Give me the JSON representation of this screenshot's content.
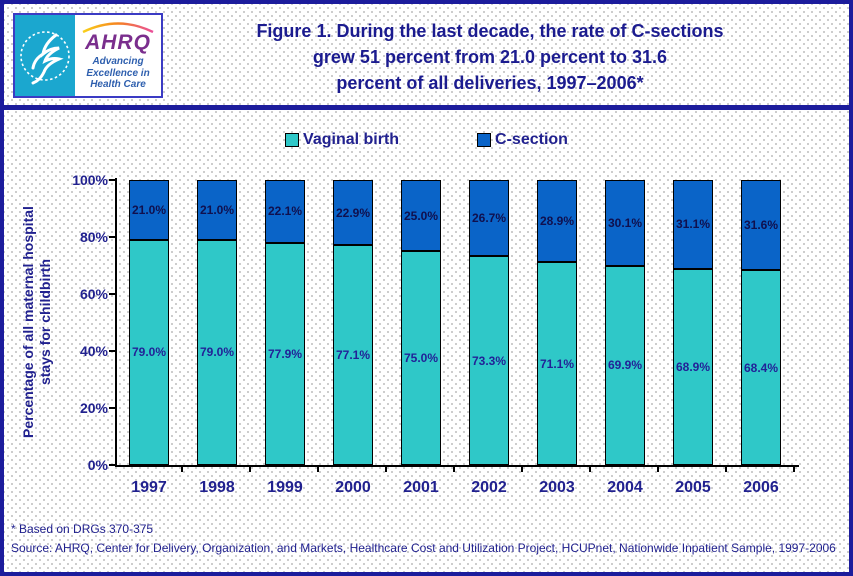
{
  "header": {
    "title_lines": [
      "Figure 1. During the last decade, the rate of C-sections",
      "grew 51 percent from 21.0 percent to 31.6",
      "percent of all deliveries, 1997–2006*"
    ],
    "logo": {
      "org_abbr": "AHRQ",
      "tagline_lines": [
        "Advancing",
        "Excellence in",
        "Health Care"
      ],
      "seal_bg_color": "#1ba7cf"
    }
  },
  "chart_data": {
    "type": "bar",
    "stacked": true,
    "orientation": "vertical",
    "title": "Figure 1. During the last decade, the rate of C-sections grew 51 percent from 21.0 percent to 31.6 percent of all deliveries, 1997–2006*",
    "categories": [
      "1997",
      "1998",
      "1999",
      "2000",
      "2001",
      "2002",
      "2003",
      "2004",
      "2005",
      "2006"
    ],
    "series": [
      {
        "name": "Vaginal birth",
        "color": "#2fc8c8",
        "label_color": "#222297",
        "values": [
          79.0,
          79.0,
          77.9,
          77.1,
          75.0,
          73.3,
          71.1,
          69.9,
          68.9,
          68.4
        ]
      },
      {
        "name": "C-section",
        "color": "#0a64c8",
        "label_color": "#10104e",
        "values": [
          21.0,
          21.0,
          22.1,
          22.9,
          25.0,
          26.7,
          28.9,
          30.1,
          31.1,
          31.6
        ]
      }
    ],
    "ylabel_lines": [
      "Percentage of all maternal hospital",
      "stays for childbirth"
    ],
    "ylabel": "Percentage of all maternal hospital stays for childbirth",
    "xlabel": "",
    "yticks": [
      "0%",
      "20%",
      "40%",
      "60%",
      "80%",
      "100%"
    ],
    "ylim": [
      0,
      100
    ],
    "grid": false,
    "legend_position": "top",
    "value_label_format": "one-decimal-percent"
  },
  "footnotes": {
    "note": "* Based on DRGs 370-375",
    "source": "Source: AHRQ, Center for Delivery, Organization, and Markets, Healthcare Cost and Utilization Project, HCUPnet, Nationwide Inpatient Sample, 1997-2006"
  }
}
